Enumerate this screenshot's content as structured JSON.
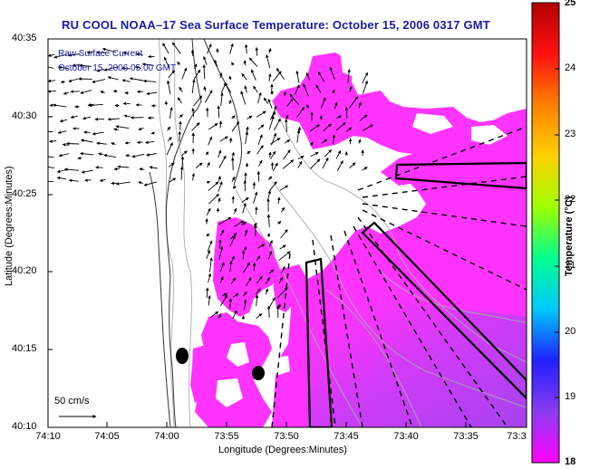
{
  "title": "RU COOL  NOAA–17  Sea Surface Temperature:  October 15, 2006 0317 GMT",
  "overlay": {
    "line1": "Raw Surface Current",
    "line2": "October 15, 2006 05:00 GMT"
  },
  "axes": {
    "xlabel": "Longitude (Degrees:Minutes)",
    "ylabel": "Latitude (Degrees:Minutes)",
    "x_ticks": [
      "74:10",
      "74:05",
      "74:00",
      "73:55",
      "73:50",
      "73:45",
      "73:40",
      "73:35",
      "73:3"
    ],
    "y_ticks": [
      "40:35",
      "40:30",
      "40:25",
      "40:20",
      "40:15",
      "40:10"
    ]
  },
  "scale_arrow": {
    "label": "50 cm/s"
  },
  "colorbar": {
    "label": "Temperature (°C)",
    "ticks": [
      "25",
      "24",
      "23",
      "22",
      "21",
      "20",
      "19",
      "18"
    ],
    "min": 18,
    "max": 25,
    "colors": [
      "#ff00ff",
      "#8a3cf0",
      "#2020ff",
      "#00c8ff",
      "#00ff90",
      "#a0ff00",
      "#ffd000",
      "#ff8000",
      "#ff1010",
      "#b00000"
    ]
  },
  "legend_colors": {
    "sst_fill": "#ff33ff",
    "sst_shade": "#a040f0",
    "coast": "#333333",
    "bathymetry": "#aaaaaa",
    "title": "#1a1aa8"
  }
}
